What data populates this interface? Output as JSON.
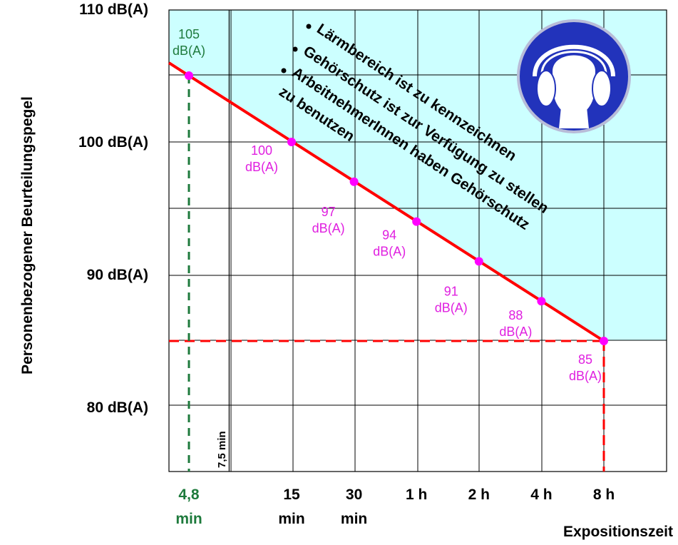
{
  "chart_data": {
    "type": "line",
    "ylabel": "Personenbezogener Beurteilungspegel",
    "xlabel": "Expositionszeit",
    "y_ticks": [
      {
        "value": 110,
        "label": "110 dB(A)"
      },
      {
        "value": 100,
        "label": "100 dB(A)"
      },
      {
        "value": 90,
        "label": "90 dB(A)"
      },
      {
        "value": 80,
        "label": "80 dB(A)"
      }
    ],
    "x_ticks": [
      {
        "minutes": 4.8,
        "line1": "4,8",
        "line2": "min",
        "highlight": true
      },
      {
        "minutes": 15,
        "line1": "15",
        "line2": "min"
      },
      {
        "minutes": 30,
        "line1": "30",
        "line2": "min"
      },
      {
        "minutes": 60,
        "line1": "1 h",
        "line2": ""
      },
      {
        "minutes": 120,
        "line1": "2 h",
        "line2": ""
      },
      {
        "minutes": 240,
        "line1": "4 h",
        "line2": ""
      },
      {
        "minutes": 480,
        "line1": "8 h",
        "line2": ""
      }
    ],
    "series": [
      {
        "points": [
          {
            "minutes": 4.8,
            "level": 105,
            "line1": "105",
            "line2": "dB(A)",
            "color": "#1e7a3c"
          },
          {
            "minutes": 15,
            "level": 100,
            "line1": "100",
            "line2": "dB(A)",
            "color": "#e020e0"
          },
          {
            "minutes": 30,
            "level": 97,
            "line1": "97",
            "line2": "dB(A)",
            "color": "#e020e0"
          },
          {
            "minutes": 60,
            "level": 94,
            "line1": "94",
            "line2": "dB(A)",
            "color": "#e020e0"
          },
          {
            "minutes": 120,
            "level": 91,
            "line1": "91",
            "line2": "dB(A)",
            "color": "#e020e0"
          },
          {
            "minutes": 240,
            "level": 88,
            "line1": "88",
            "line2": "dB(A)",
            "color": "#e020e0"
          },
          {
            "minutes": 480,
            "level": 85,
            "line1": "85",
            "line2": "dB(A)",
            "color": "#e020e0"
          }
        ]
      }
    ],
    "threshold": {
      "level": 85,
      "minutes": 480
    },
    "annotation_7_5": {
      "minutes": 7.5,
      "label": "7,5 min"
    },
    "notes": [
      "Lärmbereich ist zu kennzeichnen",
      "Gehörschutz ist zur Verfügung zu stellen",
      "ArbeitnehmerInnen haben Gehörschutz",
      "zu benutzen"
    ],
    "colors": {
      "zone_fill": "#ccffff",
      "line": "#ff0000",
      "marker": "#ff00ff",
      "green": "#1e7a3c",
      "sign_blue": "#2233bb"
    }
  },
  "sign": {
    "icon": "ear-protection-mandatory-icon"
  }
}
